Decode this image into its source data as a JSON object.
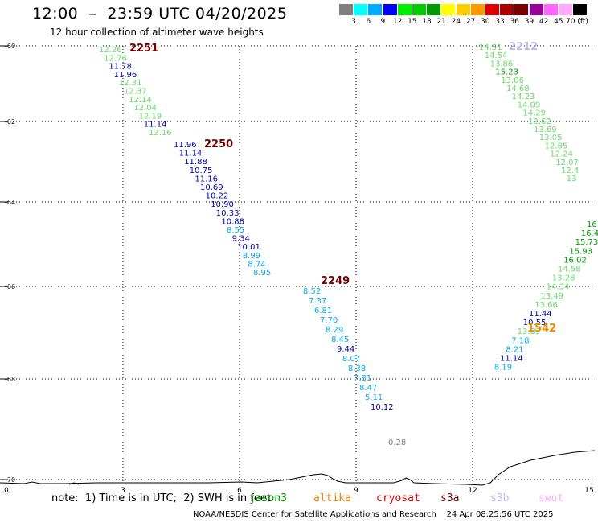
{
  "header": {
    "title": "12:00  –  23:59 UTC 04/20/2025",
    "subtitle": "12 hour collection of altimeter wave heights"
  },
  "colorbar": {
    "colors": [
      "#808080",
      "#00ffff",
      "#00aaff",
      "#0000ff",
      "#00ee00",
      "#00cc00",
      "#009900",
      "#ffff00",
      "#ffcc00",
      "#ff9900",
      "#dd0000",
      "#aa0000",
      "#770000",
      "#990099",
      "#ff66ff",
      "#ffaaff",
      "#000000"
    ],
    "labels": [
      "3",
      "6",
      "9",
      "12",
      "15",
      "18",
      "21",
      "24",
      "27",
      "30",
      "33",
      "36",
      "39",
      "42",
      "45",
      "70 (ft)"
    ]
  },
  "map": {
    "lat_labels": [
      "-60",
      "-62",
      "-64",
      "-66",
      "-68",
      "-70"
    ],
    "x_labels": [
      "0",
      "3",
      "6",
      "9",
      "12",
      "15"
    ]
  },
  "tracks": [
    {
      "id": "2251",
      "tag_color": "#770000",
      "points": [
        {
          "v": "12.26",
          "c": "#66dd66"
        },
        {
          "v": "12.76",
          "c": "#66dd66"
        },
        {
          "v": "11.78",
          "c": "#0000aa"
        },
        {
          "v": "11.96",
          "c": "#0000aa"
        },
        {
          "v": "12.31",
          "c": "#66dd66"
        },
        {
          "v": "12.37",
          "c": "#66dd66"
        },
        {
          "v": "12.14",
          "c": "#66dd66"
        },
        {
          "v": "12.04",
          "c": "#66dd66"
        },
        {
          "v": "12.19",
          "c": "#66dd66"
        },
        {
          "v": "11.14",
          "c": "#0000aa"
        },
        {
          "v": "12.16",
          "c": "#66dd66"
        }
      ]
    },
    {
      "id": "2250",
      "tag_color": "#770000",
      "points": [
        {
          "v": "11.96",
          "c": "#0000aa"
        },
        {
          "v": "11.14",
          "c": "#0000aa"
        },
        {
          "v": "11.88",
          "c": "#0000aa"
        },
        {
          "v": "10.75",
          "c": "#0000aa"
        },
        {
          "v": "11.16",
          "c": "#0000aa"
        },
        {
          "v": "10.69",
          "c": "#0000aa"
        },
        {
          "v": "10.22",
          "c": "#0000aa"
        },
        {
          "v": "10.90",
          "c": "#0000aa"
        },
        {
          "v": "10.33",
          "c": "#0000aa"
        },
        {
          "v": "10.88",
          "c": "#0000aa"
        },
        {
          "v": "8.55",
          "c": "#00aaee"
        },
        {
          "v": "9.34",
          "c": "#0000aa"
        },
        {
          "v": "10.01",
          "c": "#0000aa"
        },
        {
          "v": "8.99",
          "c": "#00aaee"
        },
        {
          "v": "8.74",
          "c": "#00aaee"
        },
        {
          "v": "8.95",
          "c": "#00aaee"
        }
      ]
    },
    {
      "id": "2249",
      "tag_color": "#770000",
      "points": [
        {
          "v": "8.52",
          "c": "#00aaee"
        },
        {
          "v": "7.37",
          "c": "#00aaee"
        },
        {
          "v": "6.81",
          "c": "#00aaee"
        },
        {
          "v": "7.70",
          "c": "#00aaee"
        },
        {
          "v": "8.29",
          "c": "#00aaee"
        },
        {
          "v": "8.45",
          "c": "#00aaee"
        },
        {
          "v": "9.44",
          "c": "#0000aa"
        },
        {
          "v": "8.07",
          "c": "#00aaee"
        },
        {
          "v": "8.38",
          "c": "#00aaee"
        },
        {
          "v": "7.81",
          "c": "#00aaee"
        },
        {
          "v": "8.47",
          "c": "#00aaee"
        },
        {
          "v": "5.11",
          "c": "#00aaee"
        },
        {
          "v": "10.12",
          "c": "#0000aa"
        }
      ]
    },
    {
      "id": "2212",
      "tag_color": "#bbbbee",
      "points": [
        {
          "v": "14.51",
          "c": "#66dd66"
        },
        {
          "v": "14.54",
          "c": "#66dd66"
        },
        {
          "v": "13.86",
          "c": "#66dd66"
        },
        {
          "v": "15.23",
          "c": "#009900"
        },
        {
          "v": "13.06",
          "c": "#66dd66"
        },
        {
          "v": "14.68",
          "c": "#66dd66"
        },
        {
          "v": "14.23",
          "c": "#66dd66"
        },
        {
          "v": "14.09",
          "c": "#66dd66"
        },
        {
          "v": "14.29",
          "c": "#66dd66"
        },
        {
          "v": "12.62",
          "c": "#66dd66"
        },
        {
          "v": "13.69",
          "c": "#66dd66"
        },
        {
          "v": "13.05",
          "c": "#66dd66"
        },
        {
          "v": "12.85",
          "c": "#66dd66"
        },
        {
          "v": "12.24",
          "c": "#66dd66"
        },
        {
          "v": "12.07",
          "c": "#66dd66"
        },
        {
          "v": "12.4",
          "c": "#66dd66"
        },
        {
          "v": "13",
          "c": "#66dd66"
        }
      ]
    },
    {
      "id": "1542",
      "tag_color": "#ee8800",
      "points": [
        {
          "v": "16",
          "c": "#009900"
        },
        {
          "v": "16.4",
          "c": "#009900"
        },
        {
          "v": "15.73",
          "c": "#009900"
        },
        {
          "v": "15.93",
          "c": "#009900"
        },
        {
          "v": "16.02",
          "c": "#009900"
        },
        {
          "v": "14.58",
          "c": "#66dd66"
        },
        {
          "v": "13.28",
          "c": "#66dd66"
        },
        {
          "v": "14.34",
          "c": "#66dd66"
        },
        {
          "v": "13.49",
          "c": "#66dd66"
        },
        {
          "v": "13.66",
          "c": "#66dd66"
        },
        {
          "v": "11.44",
          "c": "#0000aa"
        },
        {
          "v": "10.55",
          "c": "#0000aa"
        },
        {
          "v": "13.83",
          "c": "#66dd66"
        },
        {
          "v": "7.18",
          "c": "#00aaee"
        },
        {
          "v": "8.21",
          "c": "#00aaee"
        },
        {
          "v": "11.14",
          "c": "#0000aa"
        },
        {
          "v": "8.19",
          "c": "#00aaee"
        }
      ]
    }
  ],
  "extra_points": [
    {
      "v": "0.28",
      "c": "#808080"
    }
  ],
  "footer": {
    "note": "note:  1) Time is in UTC;  2) SWH is in feet",
    "legend": [
      {
        "label": "jason3",
        "color": "#009900"
      },
      {
        "label": "altika",
        "color": "#ee8800"
      },
      {
        "label": "cryosat",
        "color": "#dd0000"
      },
      {
        "label": "s3a",
        "color": "#770000"
      },
      {
        "label": "s3b",
        "color": "#bbbbee"
      },
      {
        "label": "swot",
        "color": "#ffaaff"
      }
    ],
    "credit": "NOAA/NESDIS Center for Satellite Applications and Research    24 Apr 08:25:56 UTC 2025"
  }
}
